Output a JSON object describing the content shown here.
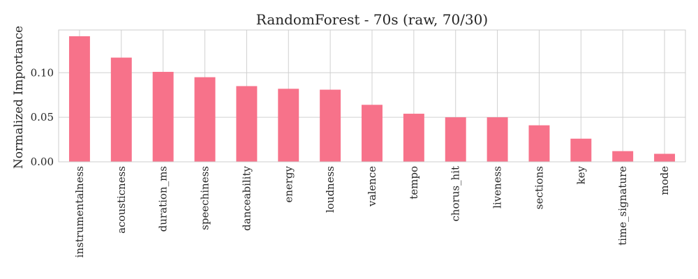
{
  "chart_data": {
    "type": "bar",
    "title": "RandomForest - 70s (raw, 70/30)",
    "xlabel": "",
    "ylabel": "Normalized Importance",
    "categories": [
      "instrumentalness",
      "acousticness",
      "duration_ms",
      "speechiness",
      "danceability",
      "energy",
      "loudness",
      "valence",
      "tempo",
      "chorus_hit",
      "liveness",
      "sections",
      "key",
      "time_signature",
      "mode"
    ],
    "values": [
      0.141,
      0.117,
      0.101,
      0.095,
      0.085,
      0.082,
      0.081,
      0.064,
      0.054,
      0.05,
      0.05,
      0.041,
      0.026,
      0.012,
      0.009
    ],
    "ylim": [
      0,
      0.148
    ],
    "yticks": [
      0.0,
      0.05,
      0.1
    ],
    "ytick_labels": [
      "0.00",
      "0.05",
      "0.10"
    ],
    "grid": true,
    "colors": {
      "bar": "#f7728a",
      "grid": "#d0d0d0",
      "frame": "#cccccc",
      "text": "#262626"
    }
  }
}
